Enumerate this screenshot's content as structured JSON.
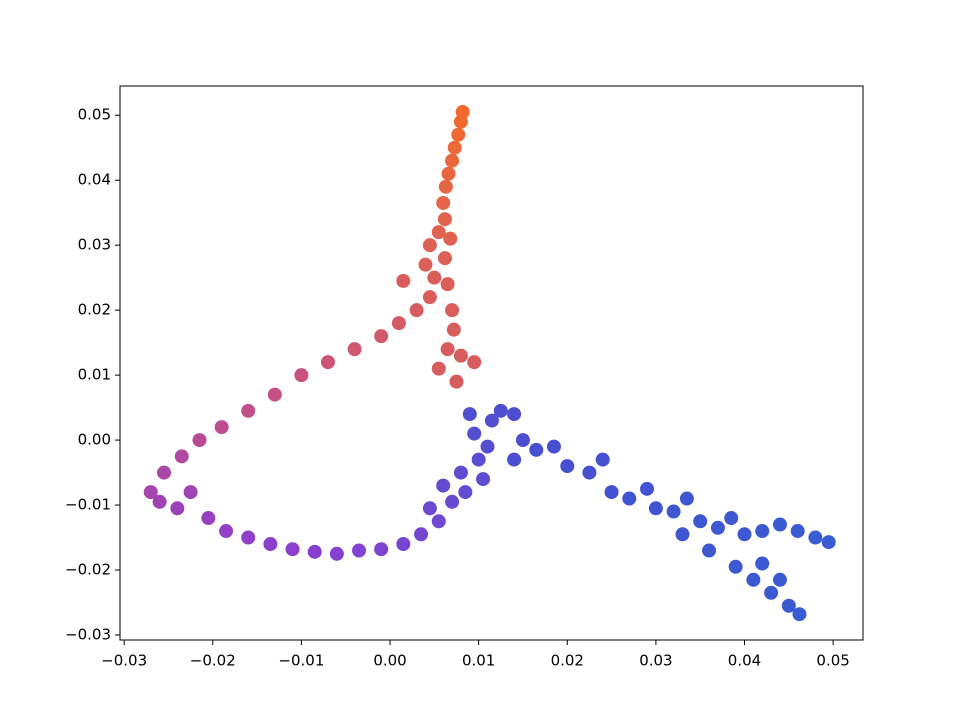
{
  "chart_data": {
    "type": "scatter",
    "xlim": [
      -0.03047,
      0.05337
    ],
    "ylim": [
      -0.03077,
      0.0545
    ],
    "xticks": [
      {
        "value": -0.03,
        "label": "−0.03"
      },
      {
        "value": -0.02,
        "label": "−0.02"
      },
      {
        "value": -0.01,
        "label": "−0.01"
      },
      {
        "value": 0,
        "label": "0.00"
      },
      {
        "value": 0.01,
        "label": "0.01"
      },
      {
        "value": 0.02,
        "label": "0.02"
      },
      {
        "value": 0.03,
        "label": "0.03"
      },
      {
        "value": 0.04,
        "label": "0.04"
      },
      {
        "value": 0.05,
        "label": "0.05"
      }
    ],
    "yticks": [
      {
        "value": -0.03,
        "label": "−0.03"
      },
      {
        "value": -0.02,
        "label": "−0.02"
      },
      {
        "value": -0.01,
        "label": "−0.01"
      },
      {
        "value": 0,
        "label": "0.00"
      },
      {
        "value": 0.01,
        "label": "0.01"
      },
      {
        "value": 0.02,
        "label": "0.02"
      },
      {
        "value": 0.03,
        "label": "0.03"
      },
      {
        "value": 0.04,
        "label": "0.04"
      },
      {
        "value": 0.05,
        "label": "0.05"
      }
    ],
    "x": [
      0.0082,
      0.008,
      0.0077,
      0.0073,
      0.007,
      0.0066,
      0.0063,
      0.006,
      0.0062,
      0.0055,
      0.0068,
      0.0045,
      0.0062,
      0.004,
      0.005,
      0.0065,
      0.0015,
      0.0045,
      0.007,
      0.0072,
      0.0065,
      0.008,
      0.0055,
      0.0095,
      0.0075,
      0.003,
      0.001,
      -0.001,
      -0.004,
      -0.007,
      -0.01,
      -0.013,
      -0.016,
      -0.019,
      -0.0215,
      -0.0235,
      -0.0255,
      -0.027,
      -0.026,
      -0.024,
      -0.0225,
      -0.0205,
      -0.0185,
      -0.016,
      -0.0135,
      -0.011,
      -0.0085,
      -0.006,
      -0.0035,
      -0.001,
      0.0015,
      0.0035,
      0.0055,
      0.0045,
      0.007,
      0.006,
      0.0085,
      0.008,
      0.0105,
      0.01,
      0.011,
      0.0095,
      0.0115,
      0.009,
      0.0125,
      0.014,
      0.015,
      0.014,
      0.0165,
      0.0185,
      0.02,
      0.0225,
      0.024,
      0.025,
      0.027,
      0.029,
      0.03,
      0.032,
      0.0335,
      0.035,
      0.037,
      0.0385,
      0.04,
      0.042,
      0.044,
      0.046,
      0.048,
      0.0495,
      0.033,
      0.036,
      0.039,
      0.041,
      0.043,
      0.045,
      0.0462,
      0.044,
      0.042
    ],
    "values": [
      0.0505,
      0.049,
      0.047,
      0.045,
      0.043,
      0.041,
      0.039,
      0.0365,
      0.034,
      0.032,
      0.031,
      0.03,
      0.028,
      0.027,
      0.025,
      0.024,
      0.0245,
      0.022,
      0.02,
      0.017,
      0.014,
      0.013,
      0.011,
      0.012,
      0.009,
      0.02,
      0.018,
      0.016,
      0.014,
      0.012,
      0.01,
      0.007,
      0.0045,
      0.002,
      0.0,
      -0.0025,
      -0.005,
      -0.008,
      -0.0095,
      -0.0105,
      -0.008,
      -0.012,
      -0.014,
      -0.015,
      -0.016,
      -0.0168,
      -0.0172,
      -0.0175,
      -0.017,
      -0.0168,
      -0.016,
      -0.0145,
      -0.0125,
      -0.0105,
      -0.0095,
      -0.007,
      -0.008,
      -0.005,
      -0.006,
      -0.003,
      -0.001,
      0.001,
      0.003,
      0.004,
      0.0045,
      0.004,
      0.0,
      -0.003,
      -0.0015,
      -0.001,
      -0.004,
      -0.005,
      -0.003,
      -0.008,
      -0.009,
      -0.0075,
      -0.0105,
      -0.011,
      -0.009,
      -0.0125,
      -0.0135,
      -0.012,
      -0.0145,
      -0.014,
      -0.013,
      -0.014,
      -0.015,
      -0.0157,
      -0.0145,
      -0.017,
      -0.0195,
      -0.0215,
      -0.0235,
      -0.0255,
      -0.0268,
      -0.0215,
      -0.019
    ],
    "colors": [
      "#f26a2e",
      "#f06a30",
      "#ee6934",
      "#ec6838",
      "#ea673c",
      "#e8663f",
      "#e66543",
      "#e36448",
      "#e1634c",
      "#df6250",
      "#df6250",
      "#dd6153",
      "#dc6055",
      "#db6057",
      "#da5f59",
      "#da5f59",
      "#d95e5b",
      "#d85e5c",
      "#d85e5c",
      "#d75d5d",
      "#d75d5d",
      "#d65c5e",
      "#d65c5e",
      "#d65c5e",
      "#d65c5e",
      "#d65c62",
      "#d45b66",
      "#d2596c",
      "#cf5772",
      "#cc5578",
      "#c9537e",
      "#c55184",
      "#c14f8a",
      "#bc4d91",
      "#b74b98",
      "#b1499f",
      "#ab47a6",
      "#a545ad",
      "#a043b4",
      "#9b41ba",
      "#a044b2",
      "#9640c0",
      "#9240c5",
      "#8f3fca",
      "#8c3fcd",
      "#8a3fcf",
      "#873fd0",
      "#8440d1",
      "#8042d1",
      "#7c43d1",
      "#7845d1",
      "#7446d1",
      "#7048d1",
      "#6c49d1",
      "#684ad1",
      "#654bd1",
      "#624cd1",
      "#5f4cd1",
      "#5c4dd1",
      "#594dd1",
      "#564ed1",
      "#544ed1",
      "#524ed1",
      "#504ed1",
      "#4e4ed1",
      "#4c4ed1",
      "#4b4ed1",
      "#4a4ed1",
      "#484fd1",
      "#474fd1",
      "#4650d1",
      "#4551d1",
      "#4551d1",
      "#4352d1",
      "#4253d1",
      "#4154d1",
      "#4055d1",
      "#3f56d1",
      "#3f56d1",
      "#3e57d1",
      "#3d58d1",
      "#3d58d1",
      "#3c59d1",
      "#3b5ad1",
      "#3a5bd1",
      "#3a5bd1",
      "#395cd1",
      "#385dd1",
      "#3f56d1",
      "#3e57d1",
      "#3d58d1",
      "#3c59d1",
      "#3b5ad1",
      "#3a5bd1",
      "#3a5bd1",
      "#3b5ad1",
      "#3c59d1"
    ]
  }
}
